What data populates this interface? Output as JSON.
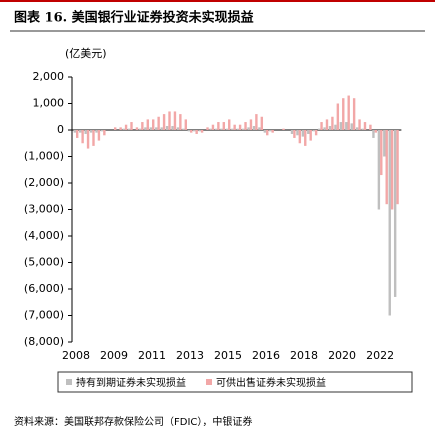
{
  "chart_data": {
    "type": "bar",
    "title": "图表 16. 美国银行业证券投资未实现损益",
    "y_axis_label": "(亿美元)",
    "source": "资料来源：美国联邦存款保险公司（FDIC），中银证券",
    "categories": [
      "2008",
      null,
      null,
      null,
      null,
      null,
      null,
      "2009",
      null,
      null,
      null,
      null,
      null,
      null,
      "2011",
      null,
      null,
      null,
      null,
      null,
      null,
      "2013",
      null,
      null,
      null,
      null,
      null,
      null,
      "2015",
      null,
      null,
      null,
      null,
      null,
      null,
      "2016",
      null,
      null,
      null,
      null,
      null,
      null,
      "2018",
      null,
      null,
      null,
      null,
      null,
      null,
      "2020",
      null,
      null,
      null,
      null,
      null,
      null,
      "2022",
      null,
      null,
      null
    ],
    "series": [
      {
        "name": "持有到期证券未实现损益",
        "color": "#bfbfbf",
        "values": [
          -100,
          -100,
          -150,
          -100,
          -100,
          -50,
          0,
          0,
          0,
          50,
          50,
          0,
          50,
          100,
          100,
          100,
          100,
          150,
          150,
          100,
          50,
          -50,
          -50,
          -50,
          0,
          50,
          50,
          50,
          50,
          50,
          50,
          50,
          100,
          150,
          100,
          -100,
          -50,
          0,
          0,
          0,
          -150,
          -200,
          -250,
          -150,
          -50,
          50,
          100,
          150,
          200,
          300,
          300,
          250,
          100,
          50,
          0,
          -300,
          -3000,
          -1000,
          -7000,
          -6300
        ]
      },
      {
        "name": "可供出售证券未实现损益",
        "color": "#f2a7a7",
        "values": [
          -300,
          -500,
          -700,
          -600,
          -400,
          -200,
          0,
          100,
          100,
          200,
          300,
          100,
          300,
          400,
          400,
          500,
          600,
          700,
          700,
          600,
          400,
          -100,
          -150,
          -100,
          100,
          200,
          300,
          300,
          400,
          200,
          200,
          300,
          400,
          600,
          500,
          -200,
          -100,
          0,
          50,
          0,
          -300,
          -500,
          -600,
          -400,
          -200,
          300,
          400,
          500,
          1000,
          1200,
          1300,
          1200,
          400,
          300,
          200,
          -100,
          -1700,
          -2800,
          -3000,
          -2800
        ]
      }
    ],
    "ylim": [
      -8000,
      2000
    ],
    "yticks": [
      {
        "value": 2000,
        "label": "2,000"
      },
      {
        "value": 1000,
        "label": "1,000"
      },
      0,
      {
        "value": -1000,
        "label": "(1,000)"
      },
      {
        "value": -2000,
        "label": "(2,000)"
      },
      {
        "value": -3000,
        "label": "(3,000)"
      },
      {
        "value": -4000,
        "label": "(4,000)"
      },
      {
        "value": -5000,
        "label": "(5,000)"
      },
      {
        "value": -6000,
        "label": "(6,000)"
      },
      {
        "value": -7000,
        "label": "(7,000)"
      },
      {
        "value": -8000,
        "label": "(8,000)"
      }
    ],
    "grid": false
  }
}
